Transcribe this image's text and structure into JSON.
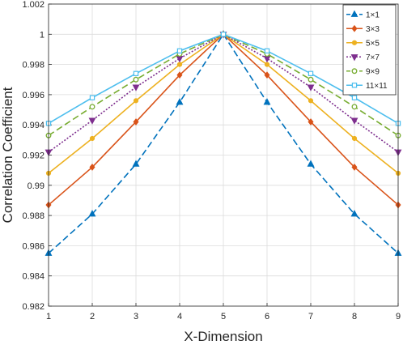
{
  "chart_data": {
    "type": "line",
    "xlabel": "X-Dimension",
    "ylabel": "Correlation Coefficient",
    "xlim": [
      1,
      9
    ],
    "ylim": [
      0.982,
      1.002
    ],
    "xticks": [
      "1",
      "2",
      "3",
      "4",
      "5",
      "6",
      "7",
      "8",
      "9"
    ],
    "yticks": [
      "0.982",
      "0.984",
      "0.986",
      "0.988",
      "0.99",
      "0.992",
      "0.994",
      "0.996",
      "0.998",
      "1",
      "1.002"
    ],
    "grid": true,
    "legend_position": "top-right",
    "x": [
      1,
      2,
      3,
      4,
      5,
      6,
      7,
      8,
      9
    ],
    "series": [
      {
        "name": "1×1",
        "color": "#0072BD",
        "dash": "dashed",
        "marker": "triangle-up",
        "values": [
          0.9855,
          0.9881,
          0.9914,
          0.9955,
          1.0,
          0.9955,
          0.9914,
          0.9881,
          0.9855
        ]
      },
      {
        "name": "3×3",
        "color": "#D95319",
        "dash": "solid",
        "marker": "diamond",
        "values": [
          0.9887,
          0.9912,
          0.9942,
          0.9973,
          1.0,
          0.9973,
          0.9942,
          0.9912,
          0.9887
        ]
      },
      {
        "name": "5×5",
        "color": "#EDB120",
        "dash": "solid",
        "marker": "dot",
        "values": [
          0.9908,
          0.9931,
          0.9956,
          0.998,
          1.0,
          0.998,
          0.9956,
          0.9931,
          0.9908
        ]
      },
      {
        "name": "7×7",
        "color": "#7E2F8E",
        "dash": "dotted",
        "marker": "triangle-down",
        "values": [
          0.9922,
          0.9943,
          0.9965,
          0.9984,
          1.0,
          0.9984,
          0.9965,
          0.9943,
          0.9922
        ]
      },
      {
        "name": "9×9",
        "color": "#77AC30",
        "dash": "dashed",
        "marker": "circle",
        "values": [
          0.9933,
          0.9952,
          0.997,
          0.9987,
          1.0,
          0.9987,
          0.997,
          0.9952,
          0.9933
        ]
      },
      {
        "name": "11×11",
        "color": "#4DBEEE",
        "dash": "solid",
        "marker": "square",
        "values": [
          0.9941,
          0.9958,
          0.9974,
          0.9989,
          1.0,
          0.9989,
          0.9974,
          0.9958,
          0.9941
        ]
      }
    ]
  }
}
